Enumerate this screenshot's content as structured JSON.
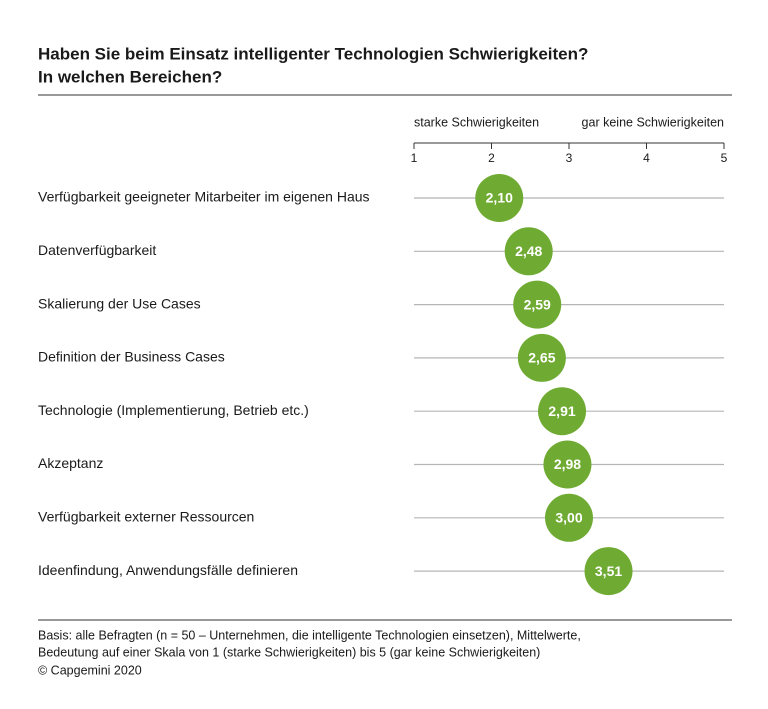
{
  "chart_data": {
    "type": "dot",
    "title": [
      "Haben Sie beim Einsatz intelligenter Technologien Schwierigkeiten?",
      "In welchen Bereichen?"
    ],
    "scale_labels": [
      "starke Schwierigkeiten",
      "gar keine Schwierigkeiten"
    ],
    "categories": [
      "Verfügbarkeit geeigneter Mitarbeiter im eigenen Haus",
      "Datenverfügbarkeit",
      "Skalierung der Use Cases",
      "Definition der Business Cases",
      "Technologie (Implementierung, Betrieb etc.)",
      "Akzeptanz",
      "Verfügbarkeit externer Ressourcen",
      "Ideenfindung, Anwendungsfälle definieren"
    ],
    "values": [
      2.1,
      2.48,
      2.59,
      2.65,
      2.91,
      2.98,
      3.0,
      3.51
    ],
    "value_labels": [
      "2,10",
      "2,48",
      "2,59",
      "2,65",
      "2,91",
      "2,98",
      "3,00",
      "3,51"
    ],
    "color": "#6fab32",
    "xlim": [
      1,
      5
    ],
    "xticks": [
      1,
      2,
      3,
      4,
      5
    ],
    "notes": [
      "Basis: alle Befragten (n = 50 – Unternehmen, die intelligente Technologien einsetzen), Mittelwerte,",
      "Bedeutung auf einer Skala von 1 (starke Schwierigkeiten) bis 5 (gar keine Schwierigkeiten)",
      "© Capgemini 2020"
    ]
  }
}
